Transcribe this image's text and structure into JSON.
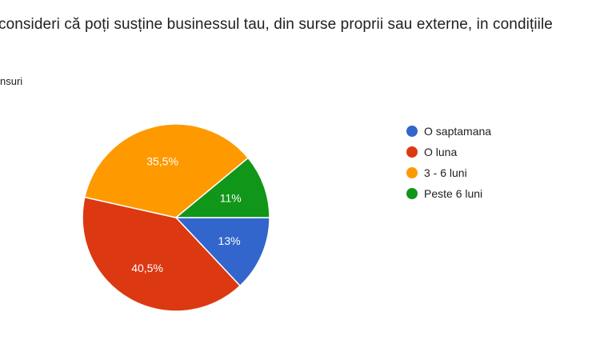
{
  "header": {
    "title": "consideri că poți susține businessul tau, din surse proprii sau externe, in condițiile",
    "subtitle": "nsuri"
  },
  "chart_data": {
    "type": "pie",
    "start_angle_deg": 0,
    "direction": "clockwise",
    "slices": [
      {
        "name": "O saptamana",
        "value": 13,
        "label": "13%",
        "color": "#3366cc"
      },
      {
        "name": "O luna",
        "value": 40.5,
        "label": "40,5%",
        "color": "#dc3912"
      },
      {
        "name": "3 - 6 luni",
        "value": 35.5,
        "label": "35,5%",
        "color": "#ff9900"
      },
      {
        "name": "Peste 6 luni",
        "value": 11,
        "label": "11%",
        "color": "#109618"
      }
    ],
    "legend_position": "right"
  }
}
